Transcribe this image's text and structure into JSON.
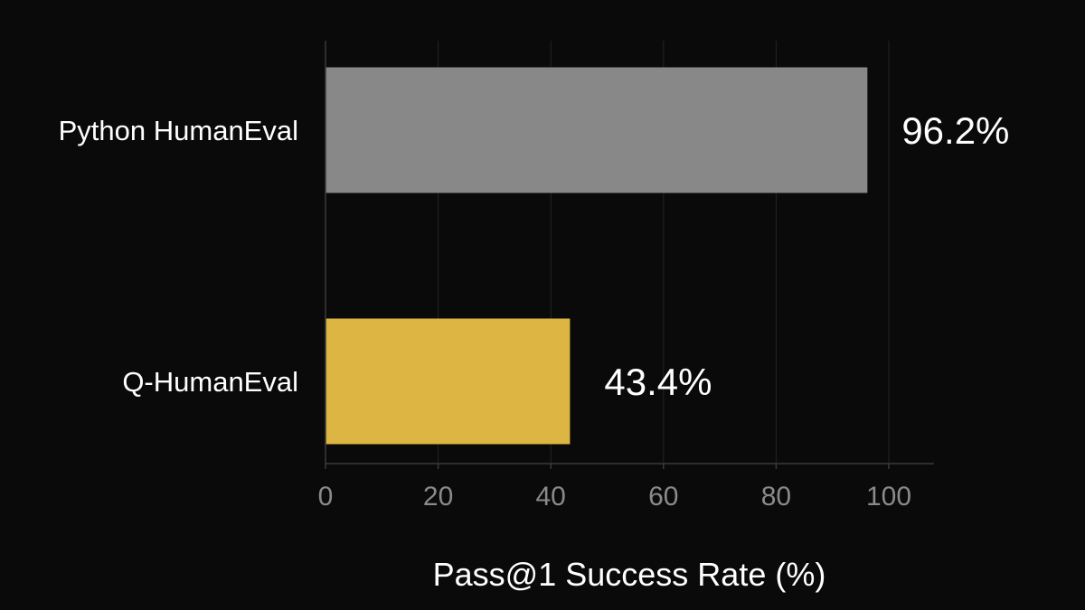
{
  "chart_data": {
    "type": "bar",
    "orientation": "horizontal",
    "categories": [
      "Python HumanEval",
      "Q-HumanEval"
    ],
    "values": [
      96.2,
      43.4
    ],
    "value_labels": [
      "96.2%",
      "43.4%"
    ],
    "colors": [
      "#888888",
      "#dcb542"
    ],
    "xlabel": "Pass@1 Success Rate (%)",
    "xlim": [
      0,
      108
    ],
    "xticks": [
      0,
      20,
      40,
      60,
      80,
      100
    ],
    "xtick_labels": [
      "0",
      "20",
      "40",
      "60",
      "80",
      "100"
    ],
    "grid": true,
    "legend": "none"
  }
}
